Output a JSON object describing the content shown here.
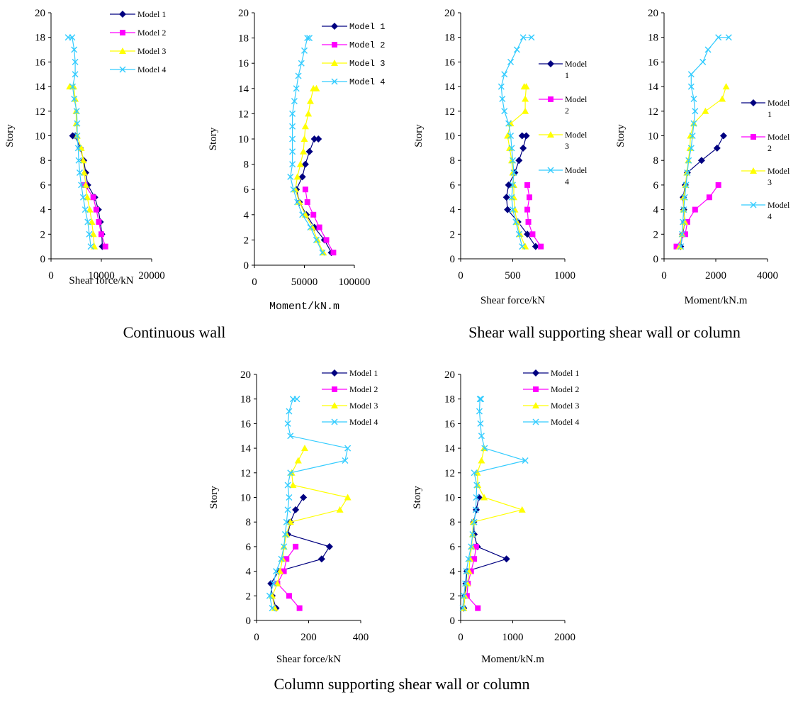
{
  "captions": {
    "group1": "Continuous wall",
    "group2": "Shear wall supporting shear wall or column",
    "group3": "Column supporting shear wall or column"
  },
  "series_styles": [
    {
      "color": "#000080",
      "marker": "diamond"
    },
    {
      "color": "#FF00FF",
      "marker": "square"
    },
    {
      "color": "#FFFF00",
      "marker": "triangle"
    },
    {
      "color": "#33CCFF",
      "marker": "x"
    }
  ],
  "chart_data": [
    {
      "type": "line",
      "title": "",
      "xlabel": "Shear force/kN",
      "ylabel": "Story",
      "xlim": [
        0,
        20000
      ],
      "ylim": [
        0,
        20
      ],
      "x_ticks": [
        "0",
        "10000",
        "20000"
      ],
      "y_ticks": [
        "0",
        "2",
        "4",
        "6",
        "8",
        "10",
        "12",
        "14",
        "16",
        "18",
        "20"
      ],
      "legend_position": "top-right",
      "grid": false,
      "series": [
        {
          "name": "Model 1",
          "x": [
            10200,
            10100,
            9800,
            9400,
            8700,
            7300,
            6900,
            6500,
            5800,
            4800,
            4300
          ],
          "y": [
            1,
            2,
            3,
            4,
            5,
            6,
            7,
            8,
            9,
            10,
            10
          ]
        },
        {
          "name": "Model 2",
          "x": [
            10800,
            10000,
            9500,
            9000,
            8400,
            6700,
            6600
          ],
          "y": [
            1,
            2,
            3,
            4,
            5,
            6,
            6
          ]
        },
        {
          "name": "Model 3",
          "x": [
            8600,
            8400,
            8100,
            7700,
            7200,
            6900,
            6600,
            6400,
            6000,
            5200,
            5000,
            5000,
            4800,
            4500,
            3700
          ],
          "y": [
            1,
            2,
            3,
            4,
            5,
            6,
            7,
            8,
            9,
            10,
            11,
            12,
            13,
            14,
            14
          ]
        },
        {
          "name": "Model 4",
          "x": [
            7900,
            7600,
            7300,
            6800,
            6400,
            6000,
            5700,
            5500,
            5400,
            5200,
            5200,
            5100,
            4600,
            4300,
            4800,
            4800,
            4600,
            4200,
            3400
          ],
          "y": [
            1,
            2,
            3,
            4,
            5,
            6,
            7,
            8,
            9,
            10,
            11,
            12,
            13,
            14,
            15,
            16,
            17,
            18,
            18
          ]
        }
      ]
    },
    {
      "type": "line",
      "title": "",
      "xlabel": "Moment/kN.m",
      "ylabel": "Story",
      "xlim": [
        0,
        100000
      ],
      "ylim": [
        0,
        20
      ],
      "x_ticks": [
        "0",
        "50000",
        "100000"
      ],
      "y_ticks": [
        "0",
        "2",
        "4",
        "6",
        "8",
        "10",
        "12",
        "14",
        "16",
        "18",
        "20"
      ],
      "legend_position": "top-right",
      "grid": false,
      "series": [
        {
          "name": "Model 1",
          "x": [
            77000,
            70000,
            60000,
            52000,
            45000,
            42000,
            48000,
            51000,
            55000,
            60000,
            64000
          ],
          "y": [
            1,
            2,
            3,
            4,
            5,
            6,
            7,
            8,
            9,
            10,
            10
          ]
        },
        {
          "name": "Model 2",
          "x": [
            79000,
            72000,
            65000,
            59000,
            53000,
            51000
          ],
          "y": [
            1,
            2,
            3,
            4,
            5,
            6
          ]
        },
        {
          "name": "Model 3",
          "x": [
            69000,
            63000,
            58000,
            51000,
            45000,
            41000,
            43000,
            46000,
            49000,
            50000,
            51000,
            54000,
            56000,
            59000,
            62000
          ],
          "y": [
            1,
            2,
            3,
            4,
            5,
            6,
            7,
            8,
            9,
            10,
            11,
            12,
            13,
            14,
            14
          ]
        },
        {
          "name": "Model 4",
          "x": [
            68000,
            62000,
            56000,
            48000,
            43000,
            39000,
            36000,
            38000,
            38000,
            38000,
            38000,
            38000,
            40000,
            42000,
            44000,
            47000,
            50000,
            53000,
            55000
          ],
          "y": [
            1,
            2,
            3,
            4,
            5,
            6,
            7,
            8,
            9,
            10,
            11,
            12,
            13,
            14,
            15,
            16,
            17,
            18,
            18
          ]
        }
      ]
    },
    {
      "type": "line",
      "title": "",
      "xlabel": "Shear force/kN",
      "ylabel": "Story",
      "xlim": [
        0,
        1000
      ],
      "ylim": [
        0,
        20
      ],
      "x_ticks": [
        "0",
        "500",
        "1000"
      ],
      "y_ticks": [
        "0",
        "2",
        "4",
        "6",
        "8",
        "10",
        "12",
        "14",
        "16",
        "18",
        "20"
      ],
      "legend_position": "right",
      "grid": false,
      "series": [
        {
          "name": "Model\n1",
          "x": [
            720,
            640,
            550,
            450,
            440,
            460,
            520,
            560,
            600,
            630,
            590
          ],
          "y": [
            1,
            2,
            3,
            4,
            5,
            6,
            7,
            8,
            9,
            10,
            10
          ]
        },
        {
          "name": "Model\n2",
          "x": [
            770,
            690,
            650,
            640,
            660,
            640
          ],
          "y": [
            1,
            2,
            3,
            4,
            5,
            6
          ]
        },
        {
          "name": "Model\n3",
          "x": [
            620,
            570,
            540,
            520,
            510,
            510,
            500,
            490,
            470,
            450,
            480,
            620,
            620,
            630,
            610
          ],
          "y": [
            1,
            2,
            3,
            4,
            5,
            6,
            7,
            8,
            9,
            10,
            11,
            12,
            13,
            14,
            14
          ]
        },
        {
          "name": "Model\n4",
          "x": [
            590,
            560,
            530,
            500,
            490,
            500,
            510,
            500,
            490,
            480,
            460,
            420,
            400,
            390,
            420,
            480,
            540,
            600,
            680
          ],
          "y": [
            1,
            2,
            3,
            4,
            5,
            6,
            7,
            8,
            9,
            10,
            11,
            12,
            13,
            14,
            15,
            16,
            17,
            18,
            18
          ]
        }
      ]
    },
    {
      "type": "line",
      "title": "",
      "xlabel": "Moment/kN.m",
      "ylabel": "Story",
      "xlim": [
        0,
        4000
      ],
      "ylim": [
        0,
        20
      ],
      "x_ticks": [
        "0",
        "2000",
        "4000"
      ],
      "y_ticks": [
        "0",
        "2",
        "4",
        "6",
        "8",
        "10",
        "12",
        "14",
        "16",
        "18",
        "20"
      ],
      "legend_position": "right",
      "grid": false,
      "series": [
        {
          "name": "Model\n1",
          "x": [
            640,
            720,
            800,
            760,
            740,
            820,
            900,
            1450,
            2050,
            2300
          ],
          "y": [
            1,
            2,
            3,
            4,
            5,
            6,
            7,
            8,
            9,
            10
          ]
        },
        {
          "name": "Model\n2",
          "x": [
            480,
            820,
            900,
            1200,
            1750,
            2100
          ],
          "y": [
            1,
            2,
            3,
            4,
            5,
            6
          ]
        },
        {
          "name": "Model\n3",
          "x": [
            600,
            700,
            800,
            750,
            760,
            830,
            880,
            940,
            1000,
            1020,
            1150,
            1600,
            2250,
            2400
          ],
          "y": [
            1,
            2,
            3,
            4,
            5,
            6,
            7,
            8,
            9,
            10,
            11,
            12,
            13,
            14
          ]
        },
        {
          "name": "Model\n4",
          "x": [
            650,
            700,
            730,
            760,
            800,
            850,
            900,
            950,
            1050,
            1100,
            1150,
            1200,
            1150,
            1050,
            1050,
            1500,
            1700,
            2100,
            2500
          ],
          "y": [
            1,
            2,
            3,
            4,
            5,
            6,
            7,
            8,
            9,
            10,
            11,
            12,
            13,
            14,
            15,
            16,
            17,
            18,
            18
          ]
        }
      ]
    },
    {
      "type": "line",
      "title": "",
      "xlabel": "Shear force/kN",
      "ylabel": "Story",
      "xlim": [
        0,
        400
      ],
      "ylim": [
        0,
        20
      ],
      "x_ticks": [
        "0",
        "200",
        "400"
      ],
      "y_ticks": [
        "0",
        "2",
        "4",
        "6",
        "8",
        "10",
        "12",
        "14",
        "16",
        "18",
        "20"
      ],
      "legend_position": "top-right",
      "grid": false,
      "series": [
        {
          "name": "Model 1",
          "x": [
            75,
            60,
            55,
            85,
            250,
            280,
            120,
            130,
            150,
            180
          ],
          "y": [
            1,
            2,
            3,
            4,
            5,
            6,
            7,
            8,
            9,
            10
          ]
        },
        {
          "name": "Model 2",
          "x": [
            165,
            125,
            80,
            105,
            115,
            150
          ],
          "y": [
            1,
            2,
            3,
            4,
            5,
            6
          ]
        },
        {
          "name": "Model 3",
          "x": [
            70,
            60,
            80,
            90,
            100,
            105,
            115,
            130,
            320,
            350,
            140,
            135,
            160,
            185
          ],
          "y": [
            1,
            2,
            3,
            4,
            5,
            6,
            7,
            8,
            9,
            10,
            11,
            12,
            13,
            14
          ]
        },
        {
          "name": "Model 4",
          "x": [
            60,
            50,
            65,
            75,
            95,
            105,
            110,
            115,
            120,
            125,
            120,
            130,
            340,
            350,
            130,
            120,
            125,
            140,
            155
          ],
          "y": [
            1,
            2,
            3,
            4,
            5,
            6,
            7,
            8,
            9,
            10,
            11,
            12,
            13,
            14,
            15,
            16,
            17,
            18,
            18
          ]
        }
      ]
    },
    {
      "type": "line",
      "title": "",
      "xlabel": "Moment/kN.m",
      "ylabel": "Story",
      "xlim": [
        0,
        2000
      ],
      "ylim": [
        0,
        20
      ],
      "x_ticks": [
        "0",
        "1000",
        "2000"
      ],
      "y_ticks": [
        "0",
        "2",
        "4",
        "6",
        "8",
        "10",
        "12",
        "14",
        "16",
        "18",
        "20"
      ],
      "legend_position": "top-right",
      "grid": false,
      "series": [
        {
          "name": "Model 1",
          "x": [
            60,
            80,
            100,
            120,
            880,
            320,
            260,
            250,
            300,
            350
          ],
          "y": [
            1,
            2,
            3,
            4,
            5,
            6,
            7,
            8,
            9,
            10
          ]
        },
        {
          "name": "Model 2",
          "x": [
            330,
            120,
            140,
            200,
            260,
            300
          ],
          "y": [
            1,
            2,
            3,
            4,
            5,
            6
          ]
        },
        {
          "name": "Model 3",
          "x": [
            60,
            80,
            130,
            160,
            180,
            210,
            230,
            240,
            1180,
            450,
            330,
            320,
            400,
            450
          ],
          "y": [
            1,
            2,
            3,
            4,
            5,
            6,
            7,
            8,
            9,
            10,
            11,
            12,
            13,
            14
          ]
        },
        {
          "name": "Model 4",
          "x": [
            40,
            60,
            90,
            110,
            150,
            200,
            230,
            260,
            290,
            300,
            310,
            260,
            1240,
            460,
            400,
            380,
            360,
            370,
            390
          ],
          "y": [
            1,
            2,
            3,
            4,
            5,
            6,
            7,
            8,
            9,
            10,
            11,
            12,
            13,
            14,
            15,
            16,
            17,
            18,
            18
          ]
        }
      ]
    }
  ]
}
